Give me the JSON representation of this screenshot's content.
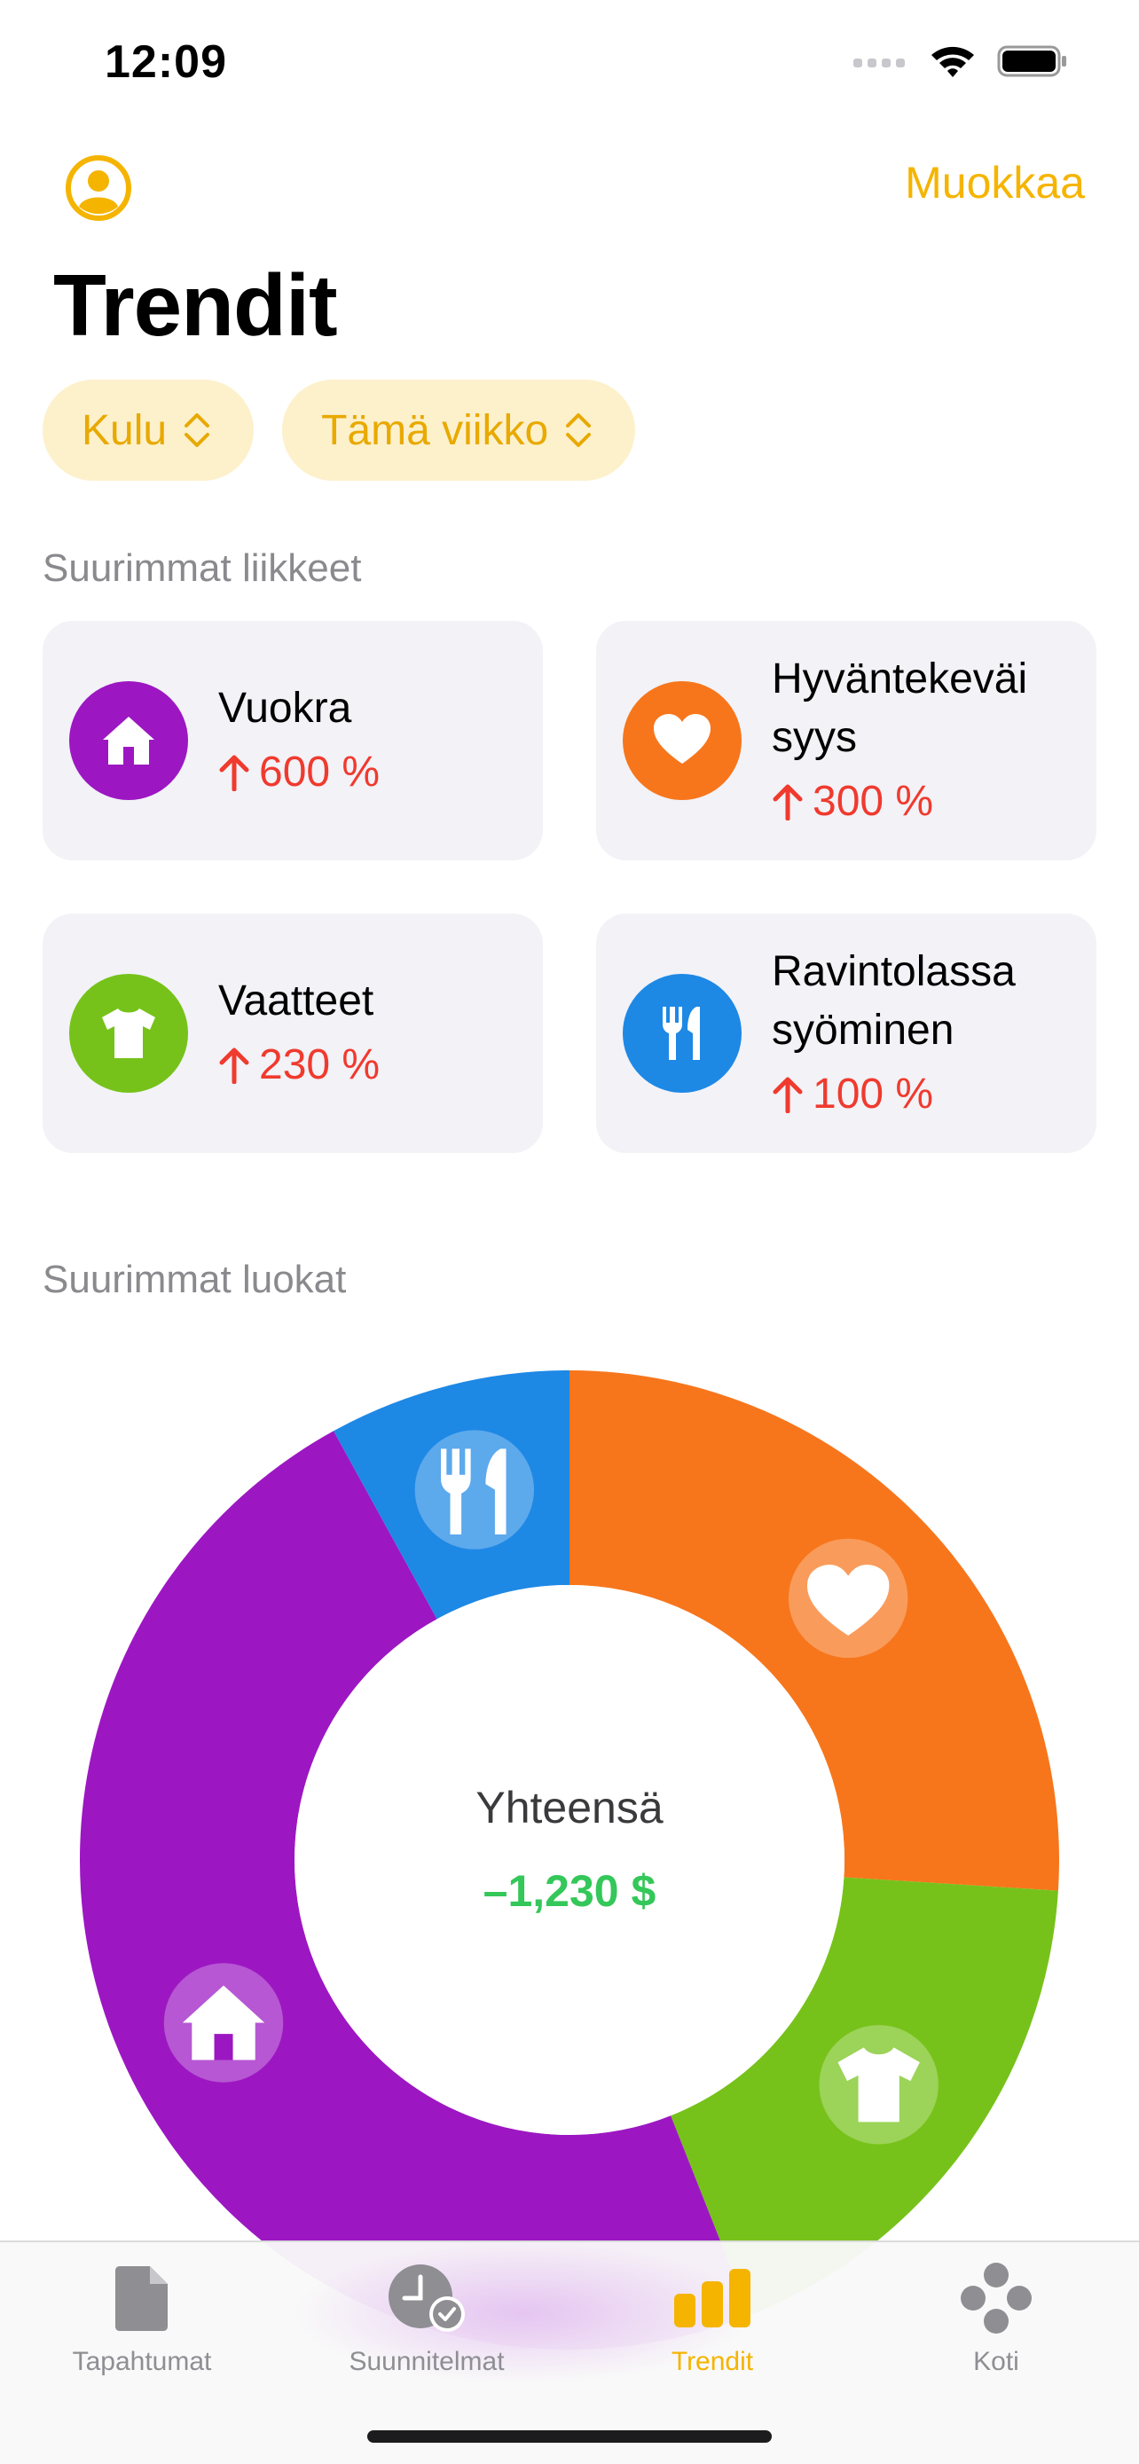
{
  "status": {
    "time": "12:09"
  },
  "nav": {
    "edit_label": "Muokkaa"
  },
  "title": "Trendit",
  "filters": [
    {
      "label": "Kulu"
    },
    {
      "label": "Tämä viikko"
    }
  ],
  "sections": {
    "movers_title": "Suurimmat liikkeet",
    "categories_title": "Suurimmat luokat"
  },
  "movers": [
    {
      "name": "Vuokra",
      "change": "600 %",
      "icon": "house-icon",
      "color": "#9c17c2"
    },
    {
      "name": "Hyväntekeväi\nsyys",
      "change": "300 %",
      "icon": "heart-icon",
      "color": "#f7761c"
    },
    {
      "name": "Vaatteet",
      "change": "230 %",
      "icon": "shirt-icon",
      "color": "#76c21a"
    },
    {
      "name": "Ravintolassa\nsyöminen",
      "change": "100 %",
      "icon": "fork-knife-icon",
      "color": "#1e88e5"
    }
  ],
  "chart_data": {
    "type": "pie",
    "donut": true,
    "slices": [
      {
        "category": "Hyväntekeväisyys",
        "icon": "heart-icon",
        "color": "#f7761c",
        "fraction": 0.26
      },
      {
        "category": "Vaatteet",
        "icon": "shirt-icon",
        "color": "#76c21a",
        "fraction": 0.18
      },
      {
        "category": "Vuokra",
        "icon": "house-icon",
        "color": "#9c17c2",
        "fraction": 0.48
      },
      {
        "category": "Ravintolassa syöminen",
        "icon": "fork-knife-icon",
        "color": "#1e88e5",
        "fraction": 0.08
      }
    ],
    "center_label": "Yhteensä",
    "center_value": "–1,230 $"
  },
  "tabs": [
    {
      "label": "Tapahtumat",
      "icon": "document-icon",
      "active": false
    },
    {
      "label": "Suunnitelmat",
      "icon": "clock-check-icon",
      "active": false
    },
    {
      "label": "Trendit",
      "icon": "bar-chart-icon",
      "active": true
    },
    {
      "label": "Koti",
      "icon": "dots-icon",
      "active": false
    }
  ],
  "colors": {
    "accent": "#f5b400",
    "increase": "#f03a2e",
    "total": "#34c759"
  }
}
